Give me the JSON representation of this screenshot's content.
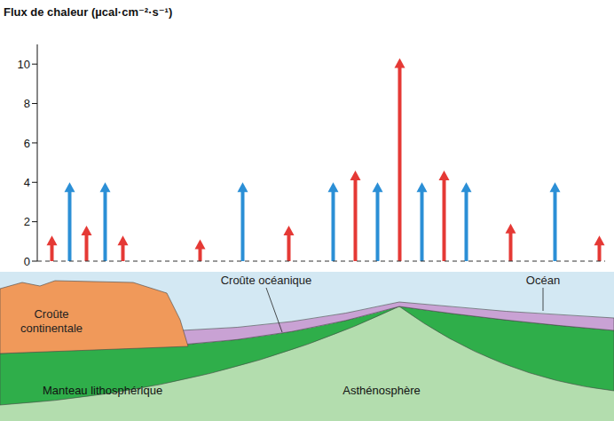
{
  "chart_data": {
    "type": "arrow",
    "y_label": "Flux de chaleur (µcal·cm⁻²·s⁻¹)",
    "x": [
      16,
      36,
      55,
      76,
      96,
      183,
      231,
      283,
      333,
      358,
      383,
      408,
      433,
      458,
      483,
      533,
      583,
      633
    ],
    "values": [
      1.3,
      4,
      1.8,
      4,
      1.3,
      1.1,
      4,
      1.8,
      4,
      4.6,
      4,
      10.3,
      4,
      4.6,
      4,
      1.9,
      4,
      1.3
    ],
    "colors": [
      "#e53935",
      "#2b8fd6",
      "#e53935",
      "#2b8fd6",
      "#e53935",
      "#e53935",
      "#2b8fd6",
      "#e53935",
      "#2b8fd6",
      "#e53935",
      "#2b8fd6",
      "#e53935",
      "#2b8fd6",
      "#e53935",
      "#2b8fd6",
      "#e53935",
      "#2b8fd6",
      "#e53935"
    ],
    "xlim": [
      0,
      640
    ],
    "ylim": [
      0,
      11
    ],
    "yticks": [
      0,
      2,
      4,
      6,
      8,
      10
    ],
    "tick_labels": "y"
  },
  "diagram": {
    "continental_crust": "Croûte continentale",
    "oceanic_crust": "Croûte océanique",
    "ocean": "Océan",
    "lithospheric_mantle": "Manteau lithosphérique",
    "asthenosphere": "Asthénosphère"
  }
}
